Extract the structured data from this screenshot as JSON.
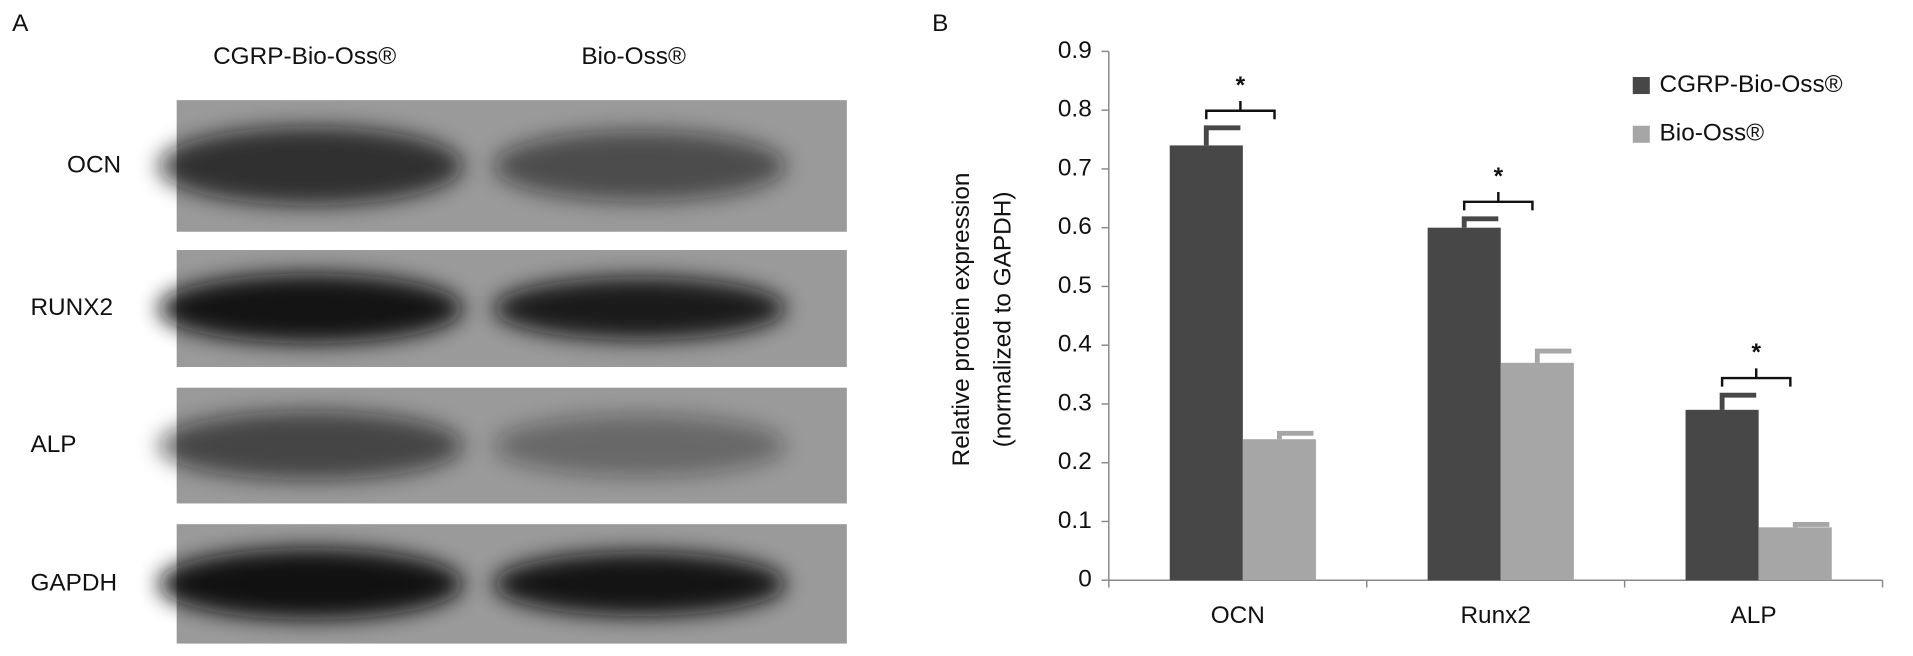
{
  "panel_a": {
    "label": "A",
    "lanes": [
      "CGRP-Bio-Oss®",
      "Bio-Oss®"
    ],
    "rows": [
      "OCN",
      "RUNX2",
      "ALP",
      "GAPDH"
    ]
  },
  "chart_data": {
    "type": "bar",
    "panel_label": "B",
    "y_label": [
      "Relative protein expression",
      "(normalized to GAPDH)"
    ],
    "categories": [
      "OCN",
      "Runx2",
      "ALP"
    ],
    "series": [
      {
        "name": "CGRP-Bio-Oss®",
        "color": "#474747",
        "values": [
          0.74,
          0.6,
          0.29
        ],
        "errors": [
          0.03,
          0.015,
          0.025
        ]
      },
      {
        "name": "Bio-Oss®",
        "color": "#a6a6a6",
        "values": [
          0.24,
          0.37,
          0.09
        ],
        "errors": [
          0.01,
          0.02,
          0.005
        ]
      }
    ],
    "significance": [
      "*",
      "*",
      "*"
    ],
    "ylim": [
      0,
      0.9
    ],
    "yticks": [
      0,
      0.1,
      0.2,
      0.3,
      0.4,
      0.5,
      0.6,
      0.7,
      0.8,
      0.9
    ],
    "legend": "upper right",
    "grid": false
  }
}
